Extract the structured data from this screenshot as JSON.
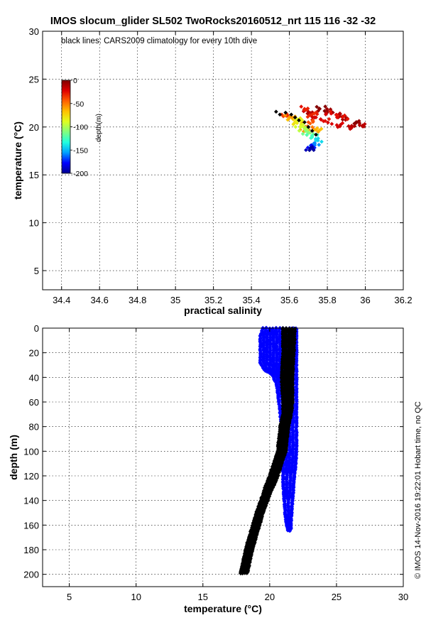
{
  "figure": {
    "title": "IMOS slocum_glider SL502 TwoRocks20160512_nrt 115  116  -32  -32",
    "footer": "© IMOS 14-Nov-2016 19:22:01 Hobart time, no QC"
  },
  "chart_data": [
    {
      "type": "scatter",
      "id": "ts-diagram",
      "xlabel": "practical salinity",
      "ylabel": "temperature (°C)",
      "xlim": [
        34.3,
        36.2
      ],
      "ylim": [
        3,
        30
      ],
      "xticks": [
        34.4,
        34.6,
        34.8,
        35,
        35.2,
        35.4,
        35.6,
        35.8,
        36,
        36.2
      ],
      "xtick_labels": [
        "34.4",
        "34.6",
        "34.8",
        "35",
        "35.2",
        "35.4",
        "35.6",
        "35.8",
        "36",
        "36.2"
      ],
      "yticks": [
        5,
        10,
        15,
        20,
        25,
        30
      ],
      "ytick_labels": [
        "5",
        "10",
        "15",
        "20",
        "25",
        "30"
      ],
      "grid": true,
      "annotation": "black lines: CARS2009 climatology for every 10th dive",
      "colorbar": {
        "label": "depth(m)",
        "range": [
          -200,
          0
        ],
        "ticks": [
          0,
          -50,
          -100,
          -150,
          -200
        ],
        "tick_labels": [
          "0",
          "-50",
          "-100",
          "-150",
          "-200"
        ],
        "colormap": [
          "#00008f",
          "#0000ff",
          "#00a0ff",
          "#20ffdf",
          "#80ff7f",
          "#dfff20",
          "#ffc000",
          "#ff6000",
          "#df0000",
          "#800000"
        ]
      },
      "series": [
        {
          "color_by": "depth",
          "points": [
            [
              35.76,
              21.9,
              -2
            ],
            [
              35.8,
              21.7,
              -6
            ],
            [
              35.86,
              21.2,
              -10
            ],
            [
              35.9,
              20.9,
              -8
            ],
            [
              35.95,
              20.4,
              -4
            ],
            [
              35.97,
              20.2,
              -12
            ],
            [
              35.93,
              20.0,
              -16
            ],
            [
              35.85,
              20.2,
              -20
            ],
            [
              35.78,
              20.6,
              -24
            ],
            [
              35.74,
              21.0,
              -18
            ],
            [
              35.7,
              21.6,
              -14
            ],
            [
              35.68,
              21.9,
              -28
            ],
            [
              35.82,
              21.4,
              -22
            ],
            [
              35.88,
              21.0,
              -26
            ],
            [
              35.72,
              21.3,
              -30
            ],
            [
              35.7,
              20.5,
              -40
            ],
            [
              35.7,
              20.0,
              -48
            ],
            [
              35.68,
              19.6,
              -56
            ],
            [
              35.74,
              19.7,
              -64
            ],
            [
              35.62,
              20.8,
              -72
            ],
            [
              35.64,
              20.4,
              -80
            ],
            [
              35.66,
              20.1,
              -90
            ],
            [
              35.68,
              19.8,
              -100
            ],
            [
              35.7,
              19.4,
              -112
            ],
            [
              35.72,
              19.0,
              -125
            ],
            [
              35.74,
              18.6,
              -140
            ],
            [
              35.73,
              18.3,
              -160
            ],
            [
              35.72,
              18.0,
              -178
            ],
            [
              35.71,
              17.8,
              -195
            ],
            [
              35.56,
              21.3,
              -35
            ],
            [
              35.6,
              21.0,
              -60
            ],
            [
              35.64,
              20.7,
              -85
            ]
          ]
        },
        {
          "name": "CARS2009",
          "color": "#000000",
          "points": [
            [
              35.53,
              21.6
            ],
            [
              35.55,
              21.3
            ],
            [
              35.58,
              21.5
            ],
            [
              35.61,
              21.3
            ],
            [
              35.63,
              21.0
            ],
            [
              35.65,
              20.7
            ],
            [
              35.68,
              20.5
            ],
            [
              35.7,
              20.0
            ],
            [
              35.72,
              19.6
            ],
            [
              35.74,
              19.2
            ]
          ]
        }
      ]
    },
    {
      "type": "scatter",
      "id": "depth-profile",
      "xlabel": "temperature (°C)",
      "ylabel": "depth (m)",
      "xlim": [
        3,
        30
      ],
      "ylim": [
        210,
        0
      ],
      "xticks": [
        5,
        10,
        15,
        20,
        25,
        30
      ],
      "xtick_labels": [
        "5",
        "10",
        "15",
        "20",
        "25",
        "30"
      ],
      "yticks": [
        0,
        20,
        40,
        60,
        80,
        100,
        120,
        140,
        160,
        180,
        200
      ],
      "ytick_labels": [
        "0",
        "20",
        "40",
        "60",
        "80",
        "100",
        "120",
        "140",
        "160",
        "180",
        "200"
      ],
      "grid": true,
      "series": [
        {
          "name": "glider observations",
          "color": "#0000ff",
          "envelope": [
            {
              "depth": 0,
              "tmin": 19.5,
              "tmax": 22.0
            },
            {
              "depth": 6,
              "tmin": 19.3,
              "tmax": 22.0
            },
            {
              "depth": 28,
              "tmin": 19.3,
              "tmax": 22.0
            },
            {
              "depth": 34,
              "tmin": 19.6,
              "tmax": 22.0
            },
            {
              "depth": 38,
              "tmin": 20.2,
              "tmax": 22.0
            },
            {
              "depth": 45,
              "tmin": 20.5,
              "tmax": 22.0
            },
            {
              "depth": 60,
              "tmin": 20.7,
              "tmax": 22.0
            },
            {
              "depth": 80,
              "tmin": 20.9,
              "tmax": 22.0
            },
            {
              "depth": 100,
              "tmin": 21.0,
              "tmax": 22.0
            },
            {
              "depth": 115,
              "tmin": 21.0,
              "tmax": 21.9
            },
            {
              "depth": 125,
              "tmin": 21.0,
              "tmax": 21.8
            },
            {
              "depth": 140,
              "tmin": 21.1,
              "tmax": 21.7
            },
            {
              "depth": 155,
              "tmin": 21.2,
              "tmax": 21.6
            },
            {
              "depth": 162,
              "tmin": 21.3,
              "tmax": 21.6
            },
            {
              "depth": 165,
              "tmin": 21.4,
              "tmax": 21.5
            }
          ]
        },
        {
          "name": "CARS2009",
          "color": "#000000",
          "envelope": [
            {
              "depth": 0,
              "tmin": 21.0,
              "tmax": 21.9
            },
            {
              "depth": 20,
              "tmin": 21.0,
              "tmax": 21.8
            },
            {
              "depth": 40,
              "tmin": 20.9,
              "tmax": 21.7
            },
            {
              "depth": 60,
              "tmin": 21.0,
              "tmax": 21.7
            },
            {
              "depth": 70,
              "tmin": 21.0,
              "tmax": 21.6
            },
            {
              "depth": 80,
              "tmin": 20.8,
              "tmax": 21.4
            },
            {
              "depth": 100,
              "tmin": 20.6,
              "tmax": 21.2
            },
            {
              "depth": 110,
              "tmin": 20.3,
              "tmax": 20.9
            },
            {
              "depth": 120,
              "tmin": 20.0,
              "tmax": 20.6
            },
            {
              "depth": 128,
              "tmin": 19.7,
              "tmax": 20.3
            },
            {
              "depth": 135,
              "tmin": 19.5,
              "tmax": 20.0
            },
            {
              "depth": 150,
              "tmin": 19.0,
              "tmax": 19.5
            },
            {
              "depth": 165,
              "tmin": 18.6,
              "tmax": 19.1
            },
            {
              "depth": 180,
              "tmin": 18.2,
              "tmax": 18.7
            },
            {
              "depth": 190,
              "tmin": 18.0,
              "tmax": 18.5
            },
            {
              "depth": 200,
              "tmin": 17.8,
              "tmax": 18.3
            }
          ]
        }
      ]
    }
  ]
}
